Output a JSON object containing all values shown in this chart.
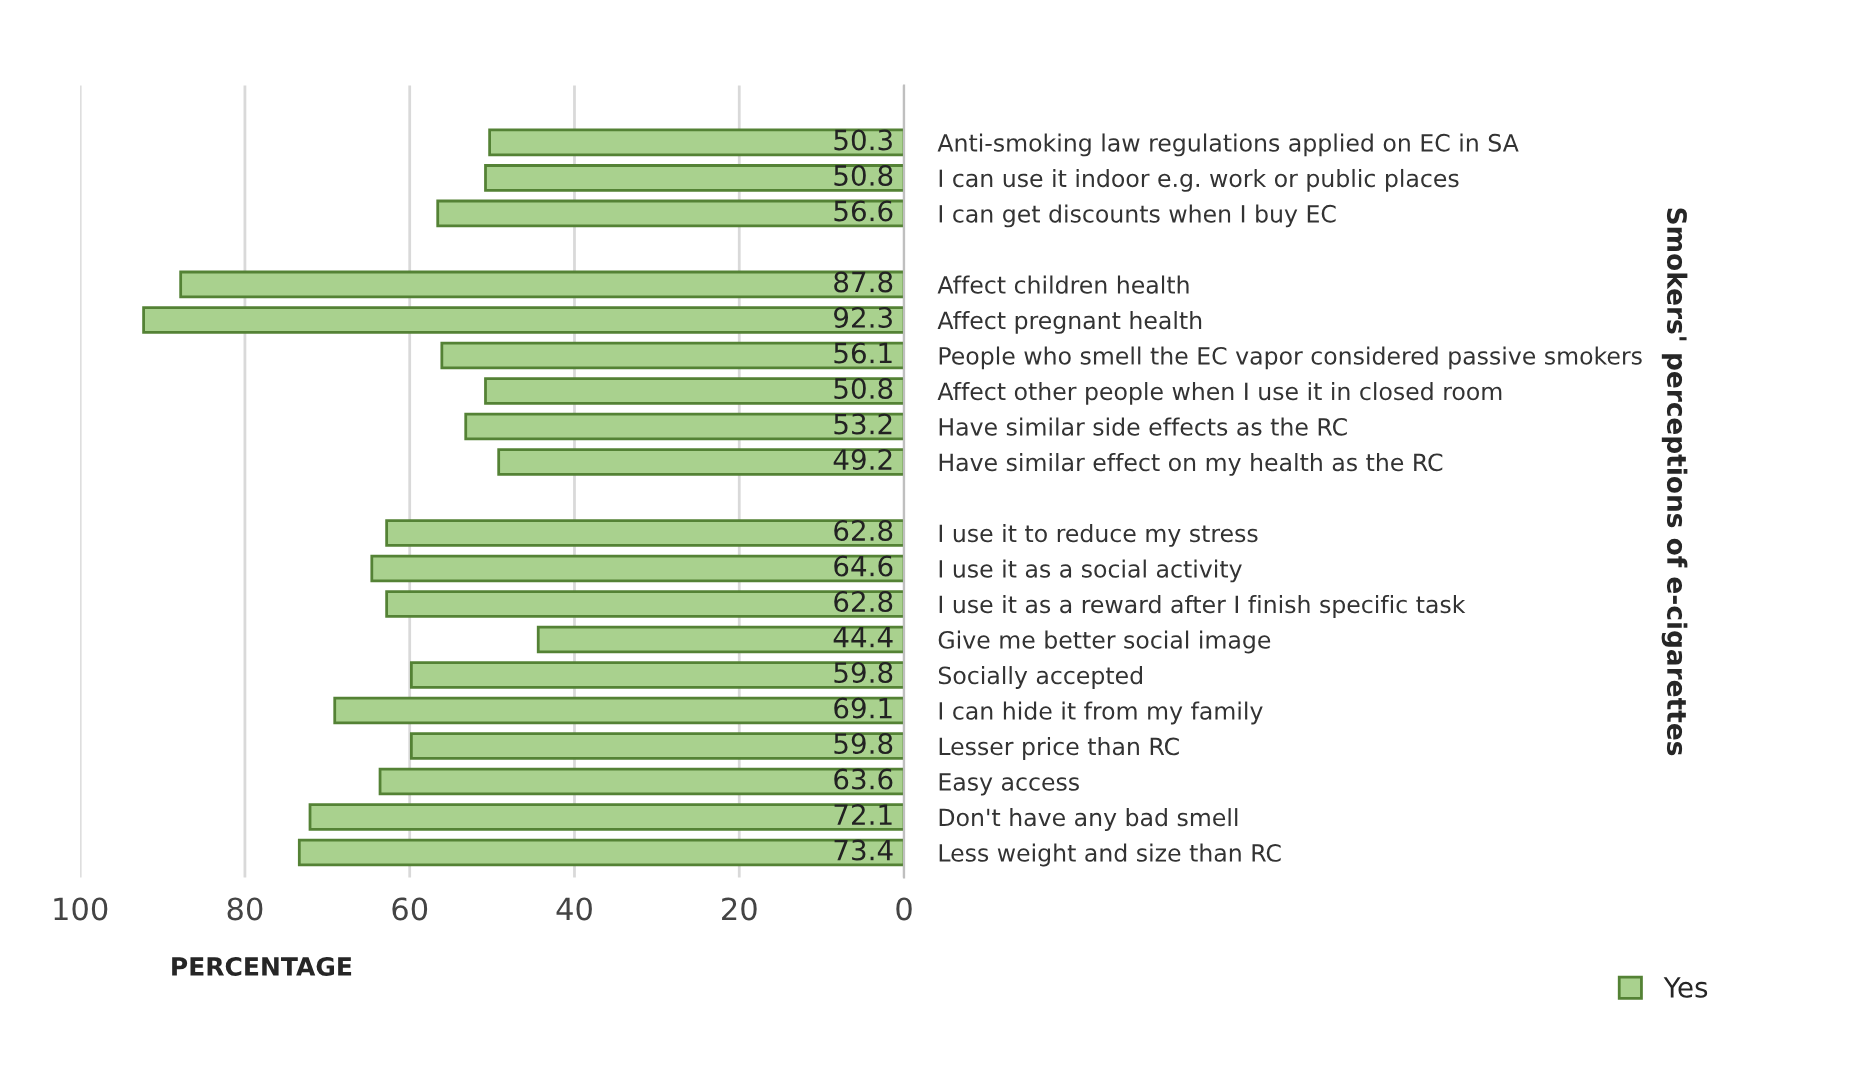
{
  "chart_data": {
    "type": "bar",
    "orientation": "horizontal",
    "categories": [
      "Anti-smoking law regulations applied on EC in SA",
      "I can use it indoor e.g. work or public places",
      "I can get discounts when I buy EC",
      null,
      "Affect children health",
      "Affect pregnant health",
      "People who smell the EC vapor considered passive smokers",
      "Affect other people when I use it in closed room",
      "Have similar side effects as the RC",
      "Have similar effect on my health as the RC",
      null,
      "I use it to reduce my stress",
      "I use it as a social activity",
      "I use it as a reward after I finish specific task",
      "Give me better social image",
      "Socially accepted",
      "I can hide it from my family",
      "Lesser price than RC",
      "Easy access",
      "Don't have any bad smell",
      "Less weight and size than RC"
    ],
    "series": [
      {
        "name": "Yes",
        "color": "#a9d18e",
        "values": [
          50.3,
          50.8,
          56.6,
          null,
          87.8,
          92.3,
          56.1,
          50.8,
          53.2,
          49.2,
          null,
          62.8,
          64.6,
          62.8,
          44.4,
          59.8,
          69.1,
          59.8,
          63.6,
          72.1,
          73.4
        ]
      }
    ],
    "xlim": [
      100,
      0
    ],
    "xticks": [
      100,
      80,
      60,
      40,
      20,
      0
    ],
    "xlabel": "PERCENTAGE",
    "ylabel": "Smokers' perceptions of e-cigarettes",
    "grid": "x",
    "legend": "bottom right",
    "data_labels": true
  }
}
